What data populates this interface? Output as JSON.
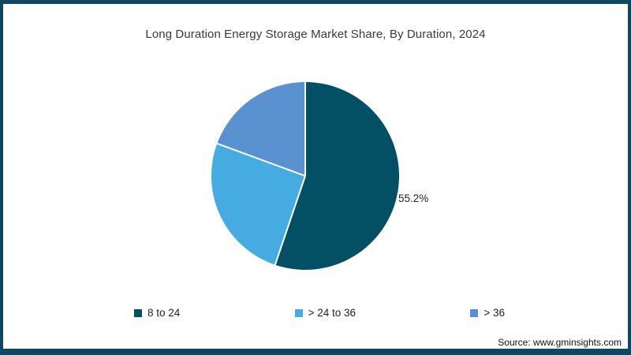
{
  "title": "Long Duration Energy Storage Market Share, By Duration, 2024",
  "chart_data": {
    "type": "pie",
    "title": "Long Duration Energy Storage Market Share, By Duration, 2024",
    "categories": [
      "8 to 24",
      "> 24 to 36",
      "> 36"
    ],
    "values": [
      55.2,
      25.4,
      19.4
    ],
    "colors": [
      "#034F63",
      "#45ABE0",
      "#5A91D1"
    ],
    "value_unit": "%",
    "start_angle_deg": 0,
    "direction": "clockwise",
    "separator_color": "#ffffff",
    "legend_position": "bottom",
    "data_labels": [
      {
        "category": "8 to 24",
        "label": "55.2%"
      }
    ]
  },
  "pie": {
    "visible_label": "55.2%"
  },
  "legend": {
    "items": [
      {
        "label": "8 to 24"
      },
      {
        "label": "> 24 to 36"
      },
      {
        "label": "> 36"
      }
    ]
  },
  "footer": {
    "source": "Source: www.gminsights.com"
  },
  "colors": {
    "frame": "#0F4860",
    "title_text": "#3a3a3a",
    "slice_dark_teal": "#034F63",
    "slice_light_blue": "#45ABE0",
    "slice_medium_blue": "#5A91D1"
  }
}
